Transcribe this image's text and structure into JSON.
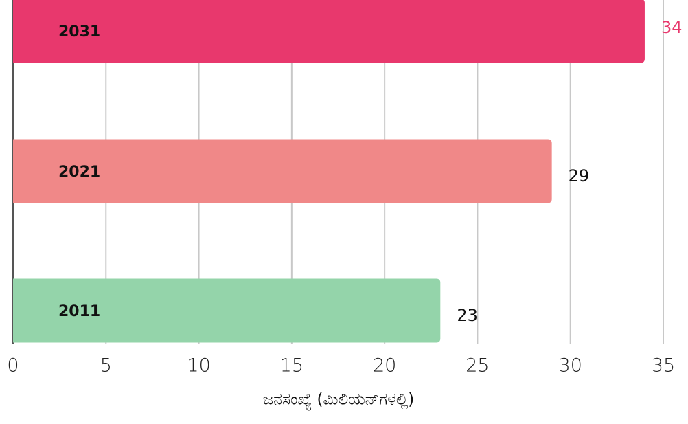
{
  "chart_data": {
    "type": "barh",
    "categories": [
      "2031",
      "2021",
      "2011"
    ],
    "values": [
      34,
      29,
      23
    ],
    "colors": [
      "#e8386d",
      "#f08888",
      "#94d4aa"
    ],
    "value_label_colors": [
      "#e8386d",
      "#111111",
      "#111111"
    ],
    "xlabel": "ಜನಸಂಖ್ಯೆ (ಮಿಲಿಯನ್‌ಗಳಲ್ಲಿ)",
    "xlim": [
      0,
      35
    ],
    "xticks": [
      0,
      5,
      10,
      15,
      20,
      25,
      30,
      35
    ],
    "grid": true
  }
}
